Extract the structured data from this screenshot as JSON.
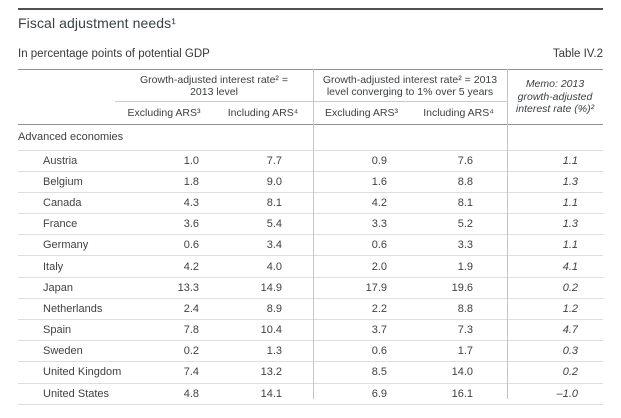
{
  "page": {
    "title": "Fiscal adjustment needs¹",
    "subtitle": "In percentage points of potential GDP",
    "table_label": "Table IV.2"
  },
  "table": {
    "col_groups": {
      "group1": "Growth-adjusted interest rate² = 2013 level",
      "group2": "Growth-adjusted interest rate² = 2013 level converging to 1% over 5 years",
      "memo": "Memo: 2013 growth-adjusted interest rate (%)²"
    },
    "subheaders": {
      "excluding": "Excluding ARS³",
      "including": "Including ARS⁴"
    },
    "section": "Advanced economies",
    "rows": [
      {
        "name": "Austria",
        "v1": "1.0",
        "v2": "7.7",
        "v3": "0.9",
        "v4": "7.6",
        "memo": "1.1"
      },
      {
        "name": "Belgium",
        "v1": "1.8",
        "v2": "9.0",
        "v3": "1.6",
        "v4": "8.8",
        "memo": "1.3"
      },
      {
        "name": "Canada",
        "v1": "4.3",
        "v2": "8.1",
        "v3": "4.2",
        "v4": "8.1",
        "memo": "1.1"
      },
      {
        "name": "France",
        "v1": "3.6",
        "v2": "5.4",
        "v3": "3.3",
        "v4": "5.2",
        "memo": "1.3"
      },
      {
        "name": "Germany",
        "v1": "0.6",
        "v2": "3.4",
        "v3": "0.6",
        "v4": "3.3",
        "memo": "1.1"
      },
      {
        "name": "Italy",
        "v1": "4.2",
        "v2": "4.0",
        "v3": "2.0",
        "v4": "1.9",
        "memo": "4.1"
      },
      {
        "name": "Japan",
        "v1": "13.3",
        "v2": "14.9",
        "v3": "17.9",
        "v4": "19.6",
        "memo": "0.2"
      },
      {
        "name": "Netherlands",
        "v1": "2.4",
        "v2": "8.9",
        "v3": "2.2",
        "v4": "8.8",
        "memo": "1.2"
      },
      {
        "name": "Spain",
        "v1": "7.8",
        "v2": "10.4",
        "v3": "3.7",
        "v4": "7.3",
        "memo": "4.7"
      },
      {
        "name": "Sweden",
        "v1": "0.2",
        "v2": "1.3",
        "v3": "0.6",
        "v4": "1.7",
        "memo": "0.3"
      },
      {
        "name": "United Kingdom",
        "v1": "7.4",
        "v2": "13.2",
        "v3": "8.5",
        "v4": "14.0",
        "memo": "0.2"
      },
      {
        "name": "United States",
        "v1": "4.8",
        "v2": "14.1",
        "v3": "6.9",
        "v4": "16.1",
        "memo": "–1.0"
      }
    ]
  }
}
